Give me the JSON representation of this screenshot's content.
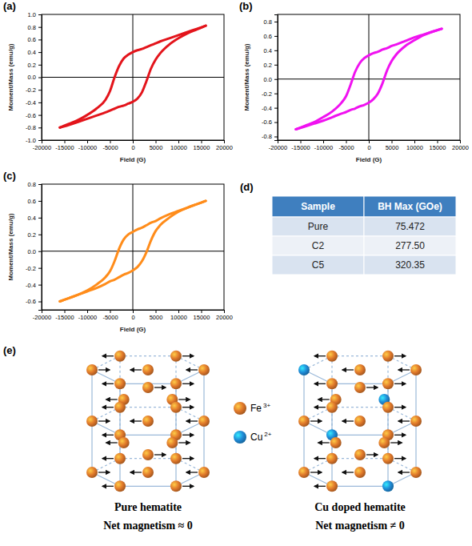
{
  "chart_data": [
    {
      "type": "line",
      "panel": "(a)",
      "x_label": "Field (G)",
      "y_label": "Moment/Mass (emu/g)",
      "x": [
        -16000,
        -14000,
        -12000,
        -10000,
        -8000,
        -6000,
        -5000,
        -4000,
        -3000,
        -2000,
        -1000,
        0,
        1000,
        2000,
        3000,
        4000,
        5000,
        6000,
        8000,
        10000,
        12000,
        14000,
        16000
      ],
      "series": [
        {
          "color": "#e3141b",
          "values": [
            -0.8,
            -0.74,
            -0.68,
            -0.6,
            -0.5,
            -0.36,
            -0.22,
            0.0,
            0.18,
            0.3,
            0.36,
            0.4,
            0.43,
            0.45,
            0.48,
            0.51,
            0.54,
            0.57,
            0.62,
            0.67,
            0.72,
            0.77,
            0.82
          ]
        },
        {
          "color": "#e3141b",
          "values": [
            -0.8,
            -0.76,
            -0.71,
            -0.66,
            -0.61,
            -0.56,
            -0.53,
            -0.5,
            -0.47,
            -0.45,
            -0.42,
            -0.39,
            -0.34,
            -0.24,
            -0.06,
            0.14,
            0.28,
            0.38,
            0.52,
            0.62,
            0.7,
            0.76,
            0.82
          ]
        }
      ],
      "xlim": [
        -20000,
        20000
      ],
      "xticks": [
        -20000,
        -15000,
        -10000,
        -5000,
        0,
        5000,
        10000,
        15000,
        20000
      ],
      "ylim": [
        -1,
        1
      ],
      "yticks": [
        {
          "value": -1,
          "label": "-1.0"
        },
        -0.8,
        -0.6,
        -0.4,
        -0.2,
        {
          "value": 0,
          "label": "0.0"
        },
        0.2,
        0.4,
        0.6,
        0.8,
        {
          "value": 1,
          "label": "1.0"
        }
      ]
    },
    {
      "type": "line",
      "panel": "(b)",
      "x_label": "Field (G)",
      "y_label": "Moment/Mass (emu/g)",
      "x": [
        -16000,
        -14000,
        -12000,
        -10000,
        -8000,
        -6000,
        -5000,
        -4000,
        -3000,
        -2000,
        -1000,
        0,
        1000,
        2000,
        3000,
        4000,
        5000,
        6000,
        8000,
        10000,
        12000,
        14000,
        16000
      ],
      "series": [
        {
          "color": "#f012f0",
          "values": [
            -0.7,
            -0.65,
            -0.6,
            -0.53,
            -0.45,
            -0.33,
            -0.24,
            -0.08,
            0.1,
            0.22,
            0.29,
            0.33,
            0.36,
            0.38,
            0.41,
            0.43,
            0.46,
            0.48,
            0.53,
            0.58,
            0.62,
            0.66,
            0.7
          ]
        },
        {
          "color": "#f012f0",
          "values": [
            -0.7,
            -0.66,
            -0.62,
            -0.58,
            -0.53,
            -0.48,
            -0.46,
            -0.43,
            -0.41,
            -0.38,
            -0.36,
            -0.33,
            -0.28,
            -0.2,
            -0.06,
            0.12,
            0.25,
            0.34,
            0.46,
            0.54,
            0.61,
            0.66,
            0.7
          ]
        }
      ],
      "xlim": [
        -20000,
        20000
      ],
      "xticks": [
        -20000,
        -15000,
        -10000,
        -5000,
        0,
        5000,
        10000,
        15000,
        20000
      ],
      "ylim": [
        -0.85,
        0.9
      ],
      "yticks": [
        -0.8,
        -0.6,
        -0.4,
        -0.2,
        {
          "value": 0,
          "label": "0.0"
        },
        0.2,
        0.4,
        0.6,
        0.8
      ]
    },
    {
      "type": "line",
      "panel": "(c)",
      "x_label": "Field (G)",
      "y_label": "Moment/Mass (emu/g)",
      "x": [
        -16000,
        -14000,
        -12000,
        -10000,
        -8000,
        -6000,
        -5000,
        -4000,
        -3000,
        -2000,
        -1000,
        0,
        1000,
        2000,
        3000,
        4000,
        5000,
        6000,
        8000,
        10000,
        12000,
        14000,
        16000
      ],
      "series": [
        {
          "color": "#ff8c1a",
          "values": [
            -0.6,
            -0.56,
            -0.52,
            -0.47,
            -0.4,
            -0.31,
            -0.24,
            -0.12,
            0.03,
            0.14,
            0.2,
            0.23,
            0.26,
            0.28,
            0.31,
            0.34,
            0.36,
            0.39,
            0.44,
            0.48,
            0.52,
            0.56,
            0.6
          ]
        },
        {
          "color": "#ff8c1a",
          "values": [
            -0.6,
            -0.56,
            -0.52,
            -0.48,
            -0.44,
            -0.39,
            -0.36,
            -0.34,
            -0.31,
            -0.28,
            -0.26,
            -0.23,
            -0.19,
            -0.12,
            -0.01,
            0.13,
            0.24,
            0.31,
            0.4,
            0.47,
            0.52,
            0.56,
            0.6
          ]
        }
      ],
      "xlim": [
        -20000,
        20000
      ],
      "xticks": [
        -20000,
        -15000,
        -10000,
        -5000,
        0,
        5000,
        10000,
        15000,
        20000
      ],
      "ylim": [
        -0.7,
        0.8
      ],
      "yticks": [
        -0.6,
        -0.4,
        -0.2,
        {
          "value": 0,
          "label": "0.0"
        },
        0.2,
        0.4,
        0.6,
        0.8
      ]
    }
  ],
  "table": {
    "panel": "(d)",
    "columns": [
      "Sample",
      "BH Max (GOe)"
    ],
    "rows": [
      [
        "Pure",
        "75.472"
      ],
      [
        "C2",
        "277.50"
      ],
      [
        "C5",
        "320.35"
      ]
    ]
  },
  "diagram": {
    "panel": "(e)",
    "legend": [
      {
        "symbol": "Fe",
        "charge": "3+",
        "color": "#e0782a"
      },
      {
        "symbol": "Cu",
        "charge": "2+",
        "color": "#1f8ad6"
      }
    ],
    "structures": [
      {
        "title": "Pure hematite",
        "caption": "Net magnetism ≈ 0"
      },
      {
        "title": "Cu doped hematite",
        "caption": "Net magnetism ≠ 0"
      }
    ]
  }
}
